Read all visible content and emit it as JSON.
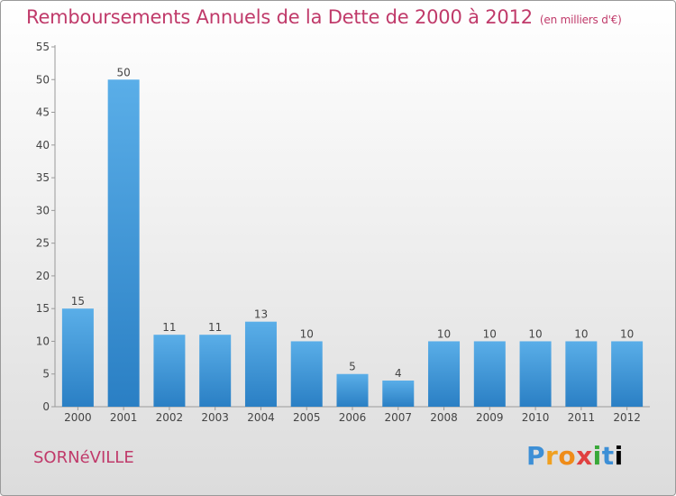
{
  "title": "Remboursements Annuels de la Dette de 2000 à 2012",
  "unit_note": "(en milliers d'€)",
  "location": "SORNéVILLE",
  "brand": {
    "letters": [
      "P",
      "r",
      "o",
      "x",
      "i",
      "t",
      "i"
    ]
  },
  "colors": {
    "accent": "#c03a6a",
    "bar_light": "#5aaee8",
    "bar_dark": "#2a7fc4"
  },
  "chart_data": {
    "type": "bar",
    "title": "Remboursements Annuels de la Dette de 2000 à 2012",
    "subtitle": "(en milliers d'€)",
    "categories": [
      "2000",
      "2001",
      "2002",
      "2003",
      "2004",
      "2005",
      "2006",
      "2007",
      "2008",
      "2009",
      "2010",
      "2011",
      "2012"
    ],
    "values": [
      15,
      50,
      11,
      11,
      13,
      10,
      5,
      4,
      10,
      10,
      10,
      10,
      10
    ],
    "ylim": [
      0,
      55
    ],
    "yticks": [
      0,
      5,
      10,
      15,
      20,
      25,
      30,
      35,
      40,
      45,
      50,
      55
    ],
    "grid": false,
    "legend": "none"
  }
}
